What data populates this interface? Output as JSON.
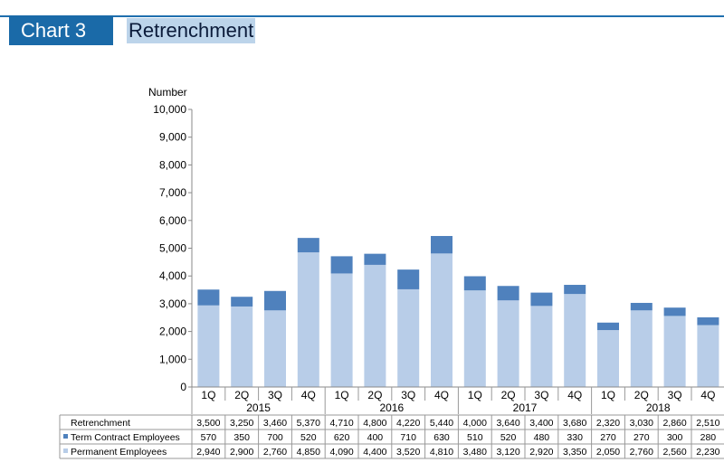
{
  "header": {
    "chart_label": "Chart 3",
    "title": "Retrenchment"
  },
  "chart_data": {
    "type": "bar",
    "stacked": true,
    "ylabel": "Number",
    "ylim": [
      0,
      10000
    ],
    "yticks": [
      "0",
      "1,000",
      "2,000",
      "3,000",
      "4,000",
      "5,000",
      "6,000",
      "7,000",
      "8,000",
      "9,000",
      "10,000"
    ],
    "categories": [
      "1Q",
      "2Q",
      "3Q",
      "4Q",
      "1Q",
      "2Q",
      "3Q",
      "4Q",
      "1Q",
      "2Q",
      "3Q",
      "4Q",
      "1Q",
      "2Q",
      "3Q",
      "4Q"
    ],
    "years": [
      "2015",
      "2016",
      "2017",
      "2018"
    ],
    "series": [
      {
        "name": "Permanent Employees",
        "color": "#b8cde8",
        "values": [
          2940,
          2900,
          2760,
          4850,
          4090,
          4400,
          3520,
          4810,
          3480,
          3120,
          2920,
          3350,
          2050,
          2760,
          2560,
          2230
        ],
        "labels": [
          "2,940",
          "2,900",
          "2,760",
          "4,850",
          "4,090",
          "4,400",
          "3,520",
          "4,810",
          "3,480",
          "3,120",
          "2,920",
          "3,350",
          "2,050",
          "2,760",
          "2,560",
          "2,230"
        ]
      },
      {
        "name": "Term Contract Employees",
        "color": "#4f81bd",
        "values": [
          570,
          350,
          700,
          520,
          620,
          400,
          710,
          630,
          510,
          520,
          480,
          330,
          270,
          270,
          300,
          280
        ],
        "labels": [
          "570",
          "350",
          "700",
          "520",
          "620",
          "400",
          "710",
          "630",
          "510",
          "520",
          "480",
          "330",
          "270",
          "270",
          "300",
          "280"
        ]
      }
    ],
    "total": {
      "name": "Retrenchment",
      "values": [
        3500,
        3250,
        3460,
        5370,
        4710,
        4800,
        4220,
        5440,
        4000,
        3640,
        3400,
        3680,
        2320,
        3030,
        2860,
        2510
      ],
      "labels": [
        "3,500",
        "3,250",
        "3,460",
        "5,370",
        "4,710",
        "4,800",
        "4,220",
        "5,440",
        "4,000",
        "3,640",
        "3,400",
        "3,680",
        "2,320",
        "3,030",
        "2,860",
        "2,510"
      ]
    },
    "grid": false,
    "legend": "data-table"
  }
}
